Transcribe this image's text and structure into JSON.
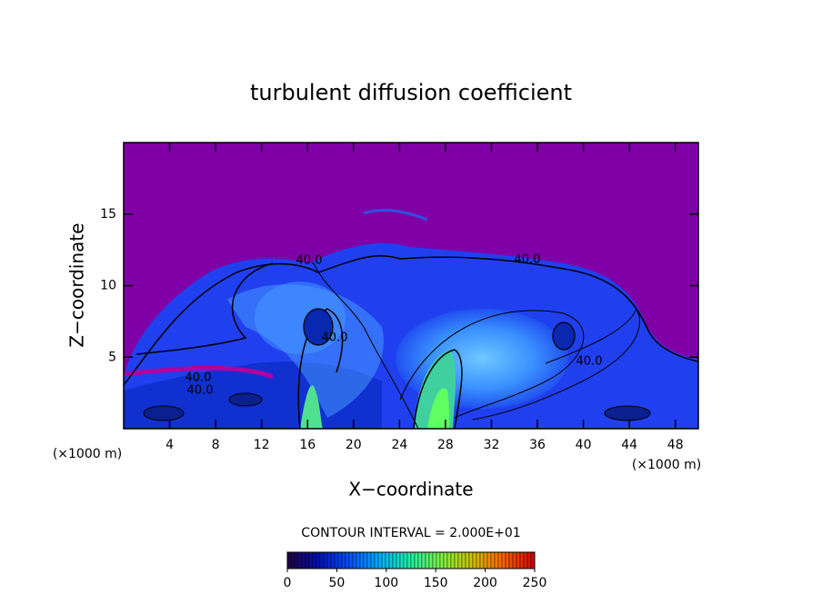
{
  "chart_data": {
    "type": "contour",
    "title": "turbulent diffusion coefficient",
    "xlabel": "X−coordinate",
    "ylabel": "Z−coordinate",
    "x_unit_left": "(×1000 m)",
    "x_unit_right": "(×1000 m)",
    "xlim": [
      0,
      50
    ],
    "xticks": [
      4,
      8,
      12,
      16,
      20,
      24,
      28,
      32,
      36,
      40,
      44,
      48
    ],
    "ylim": [
      0,
      20
    ],
    "yticks": [
      5,
      10,
      15
    ],
    "contour_labels": [
      "40.0",
      "40.0",
      "40.0",
      "40.0",
      "40.0",
      "40.0"
    ],
    "contour_interval": "CONTOUR INTERVAL = 2.000E+01",
    "colorbar": {
      "clim": [
        0,
        250
      ],
      "ticks": [
        0,
        50,
        100,
        150,
        200,
        250
      ],
      "colors": [
        "#200040",
        "#0010b0",
        "#0050ff",
        "#00b0ff",
        "#20f0a0",
        "#80f040",
        "#d0c000",
        "#ff6000",
        "#d00000"
      ]
    }
  }
}
